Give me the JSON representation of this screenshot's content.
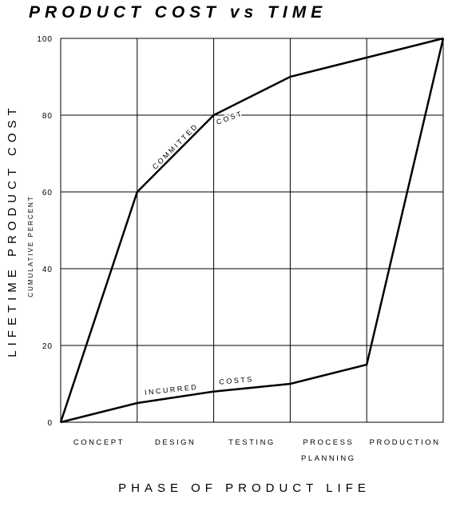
{
  "chart_data": {
    "type": "line",
    "title": "PRODUCT COST vs TIME",
    "xlabel": "PHASE OF PRODUCT LIFE",
    "ylabel": "LIFETIME PRODUCT COST",
    "ylabel_sub": "CUMULATIVE PERCENT",
    "categories": [
      "CONCEPT",
      "DESIGN",
      "TESTING",
      "PROCESS\nPLANNING",
      "PRODUCTION"
    ],
    "x": [
      0,
      1,
      2,
      3,
      4,
      5
    ],
    "ylim": [
      0,
      100
    ],
    "yticks": [
      0,
      20,
      40,
      60,
      80,
      100
    ],
    "grid": true,
    "series": [
      {
        "name": "COMMITTED COST",
        "values": [
          0,
          60,
          80,
          90,
          95,
          100
        ]
      },
      {
        "name": "INCURRED COSTS",
        "values": [
          0,
          5,
          8,
          10,
          15,
          100
        ]
      }
    ],
    "line_color": "#000000"
  }
}
